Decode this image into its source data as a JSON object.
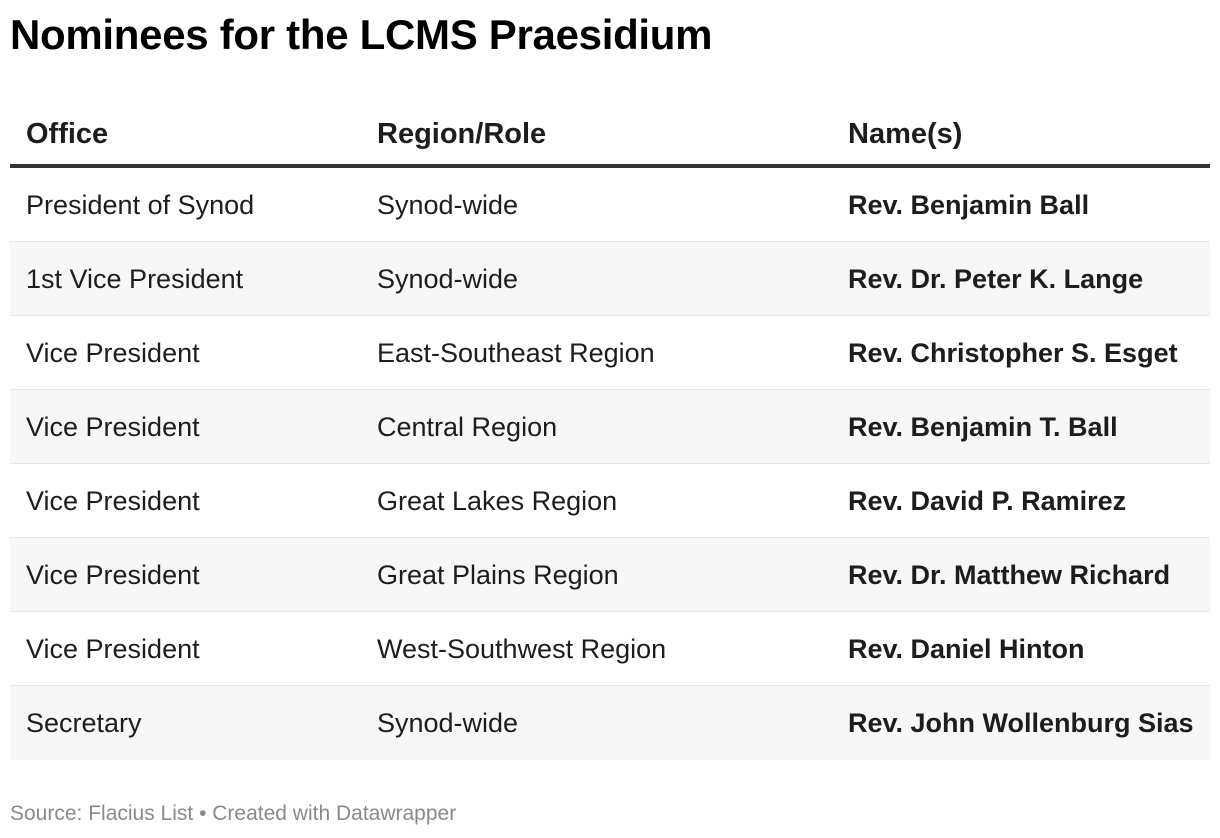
{
  "chart_data": {
    "type": "table",
    "title": "Nominees for the LCMS Praesidium",
    "columns": [
      "Office",
      "Region/Role",
      "Name(s)"
    ],
    "rows": [
      {
        "office": "President of Synod",
        "region": "Synod-wide",
        "name": "Rev. Benjamin Ball"
      },
      {
        "office": "1st Vice President",
        "region": "Synod-wide",
        "name": "Rev. Dr. Peter K. Lange"
      },
      {
        "office": "Vice President",
        "region": "East-Southeast Region",
        "name": "Rev. Christopher S. Esget"
      },
      {
        "office": "Vice President",
        "region": "Central Region",
        "name": "Rev. Benjamin T. Ball"
      },
      {
        "office": "Vice President",
        "region": "Great Lakes Region",
        "name": "Rev. David P. Ramirez"
      },
      {
        "office": "Vice President",
        "region": "Great Plains Region",
        "name": "Rev. Dr. Matthew Richard"
      },
      {
        "office": "Vice President",
        "region": "West-Southwest Region",
        "name": "Rev. Daniel Hinton"
      },
      {
        "office": "Secretary",
        "region": "Synod-wide",
        "name": "Rev. John Wollenburg Sias"
      }
    ],
    "footer": "Source: Flacius List • Created with Datawrapper"
  },
  "colors": {
    "header_rule": "#333333",
    "stripe": "#f7f7f7",
    "footer_text": "#8a8a8a"
  }
}
